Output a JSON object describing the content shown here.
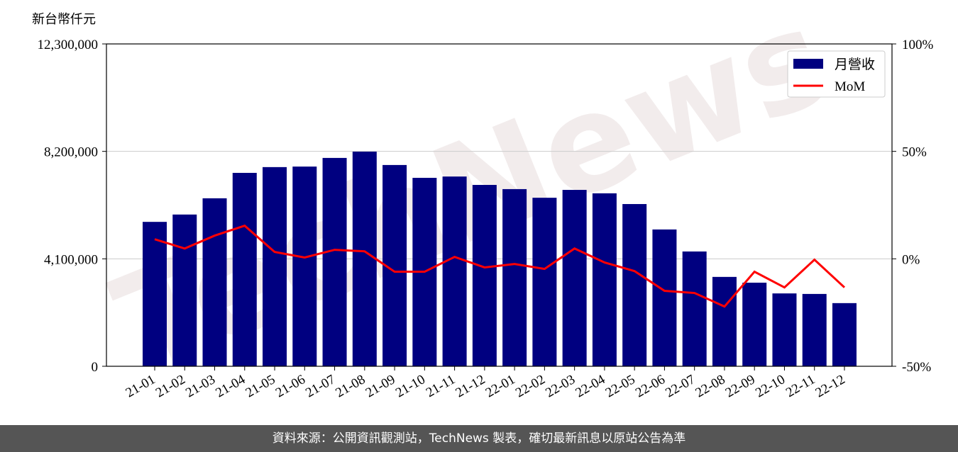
{
  "chart_data": {
    "type": "bar-line",
    "y_label": "新台幣仟元",
    "watermark": "TechNews",
    "categories": [
      "21-01",
      "21-02",
      "21-03",
      "21-04",
      "21-05",
      "21-06",
      "21-07",
      "21-08",
      "21-09",
      "21-10",
      "21-11",
      "21-12",
      "22-01",
      "22-02",
      "22-03",
      "22-04",
      "22-05",
      "22-06",
      "22-07",
      "22-08",
      "22-09",
      "22-10",
      "22-11",
      "22-12"
    ],
    "series": [
      {
        "name": "月營收",
        "color": "#000080",
        "type": "bar",
        "values": [
          5510000,
          5790000,
          6410000,
          7380000,
          7600000,
          7620000,
          7950000,
          8190000,
          7680000,
          7190000,
          7240000,
          6920000,
          6760000,
          6430000,
          6730000,
          6600000,
          6190000,
          5220000,
          4380000,
          3410000,
          3190000,
          2780000,
          2760000,
          2410000
        ]
      },
      {
        "name": "MoM",
        "color": "#ff0000",
        "type": "line",
        "axis": "y2",
        "values": [
          9.1,
          4.8,
          10.8,
          15.4,
          3.2,
          0.6,
          4.2,
          3.5,
          -6.0,
          -6.0,
          0.9,
          -4.0,
          -2.4,
          -4.7,
          4.8,
          -1.7,
          -5.7,
          -14.9,
          -15.9,
          -22.2,
          -6.0,
          -13.3,
          -0.4,
          -13.3
        ]
      }
    ],
    "ylim": [
      0,
      12300000
    ],
    "yticks": [
      0,
      {
        "value": 4100000,
        "label": "4,100,000"
      },
      {
        "value": 8200000,
        "label": "8,200,000"
      },
      {
        "value": 12300000,
        "label": "12,300,000"
      }
    ],
    "y2lim": [
      -50,
      100
    ],
    "y2ticks": [
      {
        "value": -50,
        "label": "-50%"
      },
      {
        "value": 0,
        "label": "0%"
      },
      {
        "value": 50,
        "label": "50%"
      },
      {
        "value": 100,
        "label": "100%"
      }
    ],
    "grid": true,
    "legend": "upper right"
  },
  "footer": "資料來源：公開資訊觀測站，TechNews 製表，確切最新訊息以原站公告為準"
}
